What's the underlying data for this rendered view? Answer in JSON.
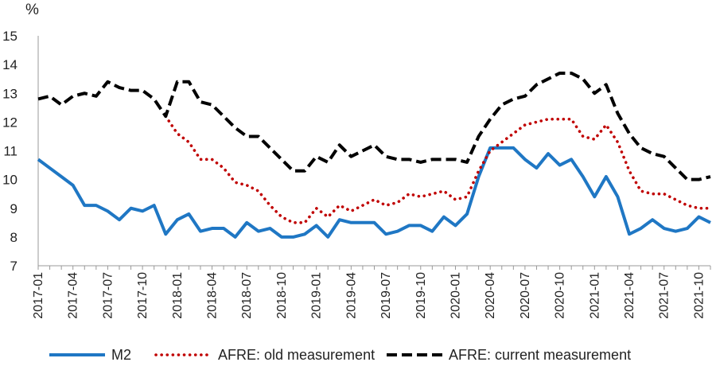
{
  "chart_data": {
    "type": "line",
    "unit_label": "%",
    "ylim": [
      7,
      15
    ],
    "yticks": [
      7,
      8,
      9,
      10,
      11,
      12,
      13,
      14,
      15
    ],
    "grid": false,
    "legend_position": "bottom",
    "x": [
      "2017-01",
      "2017-02",
      "2017-03",
      "2017-04",
      "2017-05",
      "2017-06",
      "2017-07",
      "2017-08",
      "2017-09",
      "2017-10",
      "2017-11",
      "2017-12",
      "2018-01",
      "2018-02",
      "2018-03",
      "2018-04",
      "2018-05",
      "2018-06",
      "2018-07",
      "2018-08",
      "2018-09",
      "2018-10",
      "2018-11",
      "2018-12",
      "2019-01",
      "2019-02",
      "2019-03",
      "2019-04",
      "2019-05",
      "2019-06",
      "2019-07",
      "2019-08",
      "2019-09",
      "2019-10",
      "2019-11",
      "2019-12",
      "2020-01",
      "2020-02",
      "2020-03",
      "2020-04",
      "2020-05",
      "2020-06",
      "2020-07",
      "2020-08",
      "2020-09",
      "2020-10",
      "2020-11",
      "2020-12",
      "2021-01",
      "2021-02",
      "2021-03",
      "2021-04",
      "2021-05",
      "2021-06",
      "2021-07",
      "2021-08",
      "2021-09",
      "2021-10",
      "2021-11"
    ],
    "xtick_labels": [
      "2017-01",
      "2017-04",
      "2017-07",
      "2017-10",
      "2018-01",
      "2018-04",
      "2018-07",
      "2018-10",
      "2019-01",
      "2019-04",
      "2019-07",
      "2019-10",
      "2020-01",
      "2020-04",
      "2020-07",
      "2020-10",
      "2021-01",
      "2021-04",
      "2021-07",
      "2021-10"
    ],
    "series": [
      {
        "name": "M2",
        "color": "#1f77c4",
        "style": "solid",
        "values": [
          10.7,
          10.4,
          10.1,
          9.8,
          9.1,
          9.1,
          8.9,
          8.6,
          9.0,
          8.9,
          9.1,
          8.1,
          8.6,
          8.8,
          8.2,
          8.3,
          8.3,
          8.0,
          8.5,
          8.2,
          8.3,
          8.0,
          8.0,
          8.1,
          8.4,
          8.0,
          8.6,
          8.5,
          8.5,
          8.5,
          8.1,
          8.2,
          8.4,
          8.4,
          8.2,
          8.7,
          8.4,
          8.8,
          10.1,
          11.1,
          11.1,
          11.1,
          10.7,
          10.4,
          10.9,
          10.5,
          10.7,
          10.1,
          9.4,
          10.1,
          9.4,
          8.1,
          8.3,
          8.6,
          8.3,
          8.2,
          8.3,
          8.7,
          8.5
        ]
      },
      {
        "name": "AFRE: old measurement",
        "color": "#c00000",
        "style": "dotted",
        "values": [
          null,
          null,
          null,
          null,
          null,
          null,
          null,
          null,
          null,
          null,
          null,
          12.2,
          11.6,
          11.3,
          10.7,
          10.7,
          10.4,
          9.9,
          9.8,
          9.6,
          9.1,
          8.7,
          8.5,
          8.5,
          9.0,
          8.7,
          9.1,
          8.9,
          9.1,
          9.3,
          9.1,
          9.2,
          9.5,
          9.4,
          9.5,
          9.6,
          9.3,
          9.4,
          10.3,
          11.0,
          11.3,
          11.6,
          11.9,
          12.0,
          12.1,
          12.1,
          12.1,
          11.5,
          11.4,
          11.9,
          11.3,
          10.3,
          9.6,
          9.5,
          9.5,
          9.3,
          9.1,
          9.0,
          9.0
        ]
      },
      {
        "name": "AFRE: current measurement",
        "color": "#000000",
        "style": "dashed",
        "values": [
          12.8,
          12.9,
          12.6,
          12.9,
          13.0,
          12.9,
          13.4,
          13.2,
          13.1,
          13.1,
          12.8,
          12.2,
          13.4,
          13.4,
          12.7,
          12.6,
          12.2,
          11.8,
          11.5,
          11.5,
          11.1,
          10.7,
          10.3,
          10.3,
          10.8,
          10.6,
          11.2,
          10.8,
          11.0,
          11.2,
          10.8,
          10.7,
          10.7,
          10.6,
          10.7,
          10.7,
          10.7,
          10.6,
          11.5,
          12.1,
          12.6,
          12.8,
          12.9,
          13.3,
          13.5,
          13.7,
          13.7,
          13.5,
          13.0,
          13.3,
          12.3,
          11.6,
          11.1,
          10.9,
          10.8,
          10.4,
          10.0,
          10.0,
          10.1
        ]
      }
    ]
  }
}
